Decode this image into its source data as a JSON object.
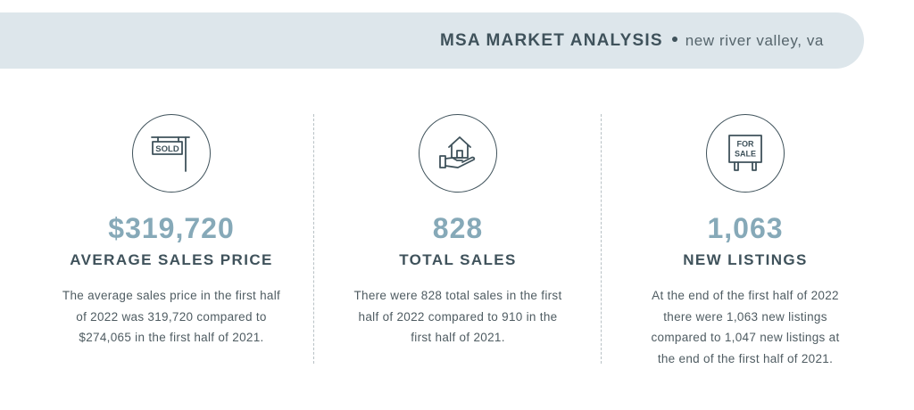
{
  "header": {
    "title": "MSA MARKET ANALYSIS",
    "subtitle": "new river valley, va"
  },
  "stats": [
    {
      "icon": "sold-sign-icon",
      "icon_text": "SOLD",
      "value": "$319,720",
      "label": "AVERAGE SALES PRICE",
      "description": "The average sales price in the first half of 2022 was 319,720 compared to $274,065 in the first half of 2021."
    },
    {
      "icon": "house-in-hand-icon",
      "value": "828",
      "label": "TOTAL SALES",
      "description": "There were 828 total sales in the first half of 2022 compared to 910 in the first half of 2021."
    },
    {
      "icon": "for-sale-sign-icon",
      "icon_text_line1": "FOR",
      "icon_text_line2": "SALE",
      "value": "1,063",
      "label": "NEW LISTINGS",
      "description": "At the end of the first half of 2022 there were 1,063 new listings compared to 1,047 new listings at the end of the first half of 2021."
    }
  ],
  "colors": {
    "banner_bg": "#dde6eb",
    "heading": "#3f525b",
    "accent_value": "#86a9b8"
  }
}
